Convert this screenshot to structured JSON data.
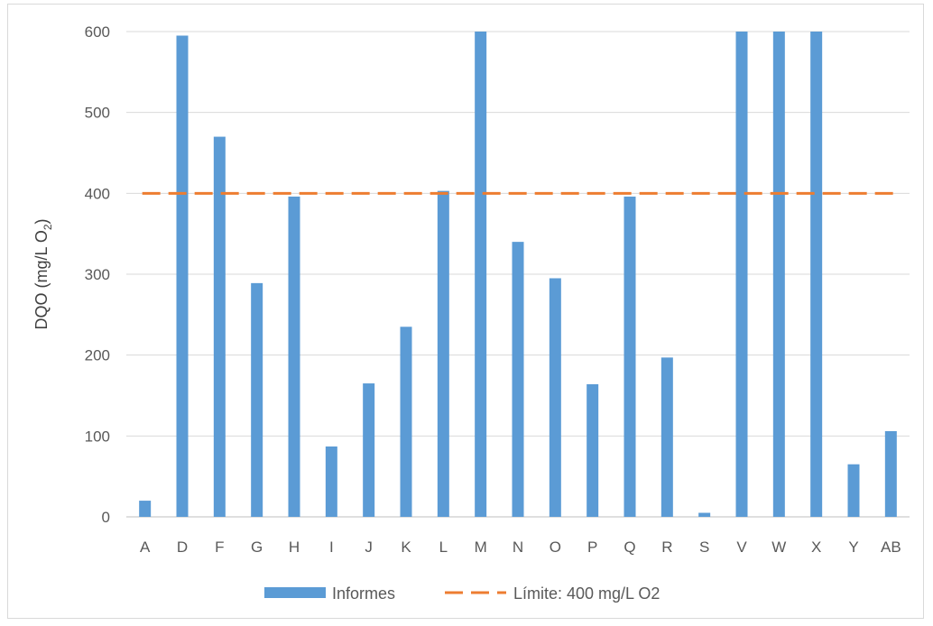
{
  "chart_data": {
    "type": "bar",
    "categories": [
      "A",
      "D",
      "F",
      "G",
      "H",
      "I",
      "J",
      "K",
      "L",
      "M",
      "N",
      "O",
      "P",
      "Q",
      "R",
      "S",
      "V",
      "W",
      "X",
      "Y",
      "AB"
    ],
    "series": [
      {
        "name": "Informes",
        "values": [
          20,
          595,
          470,
          289,
          396,
          87,
          165,
          235,
          403,
          600,
          340,
          295,
          164,
          396,
          197,
          5,
          600,
          600,
          600,
          65,
          106
        ],
        "color": "#5b9bd5"
      }
    ],
    "reference_line": {
      "name": "Límite: 400 mg/L O2",
      "value": 400,
      "color": "#ed7d31",
      "style": "dashed"
    },
    "ylabel_main": "DQO (mg/L O",
    "ylabel_sub": "2",
    "ylabel_end": ")",
    "ylim": [
      0,
      600
    ],
    "yticks": [
      "0",
      "100",
      "200",
      "300",
      "400",
      "500",
      "600"
    ],
    "ytick_values": [
      0,
      100,
      200,
      300,
      400,
      500,
      600
    ],
    "grid": true,
    "legend_position": "bottom"
  }
}
